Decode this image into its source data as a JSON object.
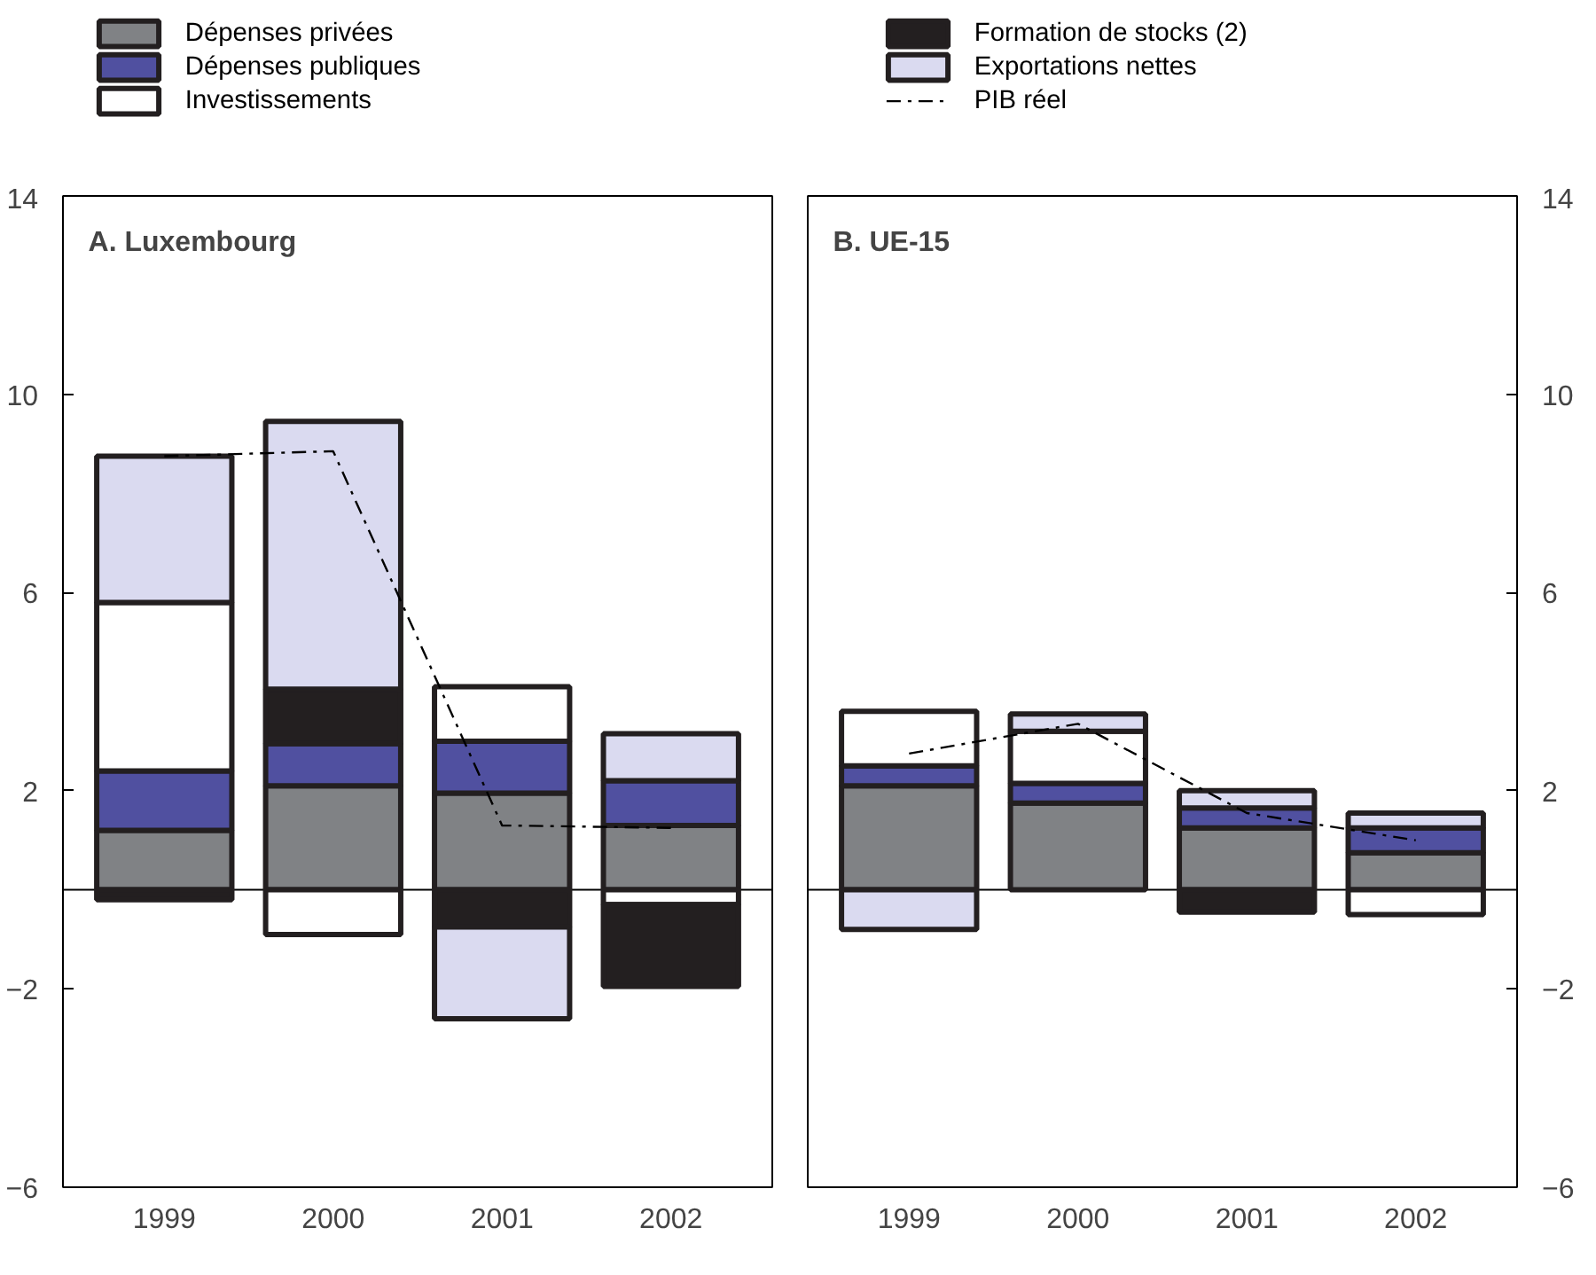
{
  "chart_data": [
    {
      "type": "bar",
      "title": "A. Luxembourg",
      "stacked": true,
      "categories": [
        "1999",
        "2000",
        "2001",
        "2002"
      ],
      "ylim": [
        -6,
        14
      ],
      "yticks": [
        -6,
        -2,
        2,
        6,
        10,
        14
      ],
      "legend": "top",
      "tick_labels": "x and left",
      "series": [
        {
          "name": "Dépenses privées",
          "color": "#808285",
          "values": [
            1.2,
            2.1,
            1.95,
            1.3
          ]
        },
        {
          "name": "Dépenses publiques",
          "color": "#5050a0",
          "values": [
            1.2,
            0.85,
            1.05,
            0.9
          ]
        },
        {
          "name": "Investissements",
          "color": "#ffffff",
          "values": [
            3.4,
            -0.9,
            1.1,
            -0.3
          ]
        },
        {
          "name": "Formation de stocks (2)",
          "color": "#231f20",
          "values": [
            -0.2,
            1.1,
            -0.75,
            -1.65
          ]
        },
        {
          "name": "Exportations nettes",
          "color": "#dadaf0",
          "values": [
            2.95,
            5.4,
            -1.85,
            0.95
          ]
        },
        {
          "name": "PIB réel",
          "type": "line",
          "color": "#000000",
          "line_style": "dashed",
          "values": [
            8.75,
            8.85,
            1.3,
            1.25
          ]
        }
      ]
    },
    {
      "type": "bar",
      "title": "B. UE-15",
      "stacked": true,
      "categories": [
        "1999",
        "2000",
        "2001",
        "2002"
      ],
      "ylim": [
        -6,
        14
      ],
      "yticks": [
        -6,
        -2,
        2,
        6,
        10,
        14
      ],
      "tick_labels": "x and right",
      "series": [
        {
          "color": "#808285",
          "values": [
            2.1,
            1.75,
            1.25,
            0.75
          ]
        },
        {
          "color": "#5050a0",
          "values": [
            0.4,
            0.4,
            0.4,
            0.5
          ]
        },
        {
          "color": "#ffffff",
          "values": [
            1.1,
            1.05,
            null,
            -0.5
          ]
        },
        {
          "color": "#231f20",
          "values": [
            null,
            null,
            -0.45,
            null
          ]
        },
        {
          "color": "#dadaf0",
          "values": [
            -0.8,
            0.35,
            0.35,
            0.3
          ]
        },
        {
          "type": "line",
          "color": "#000000",
          "line_style": "dashed",
          "values": [
            2.75,
            3.35,
            1.55,
            1.0
          ]
        }
      ]
    }
  ]
}
